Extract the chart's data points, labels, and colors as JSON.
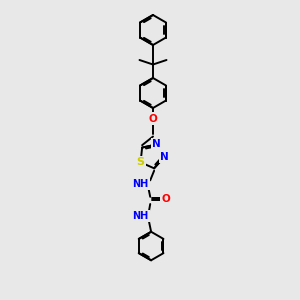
{
  "bg_color": "#e8e8e8",
  "bond_color": "#000000",
  "atom_colors": {
    "N": "#0000ff",
    "O": "#ff0000",
    "S": "#cccc00",
    "C": "#000000"
  },
  "figsize": [
    3.0,
    3.0
  ],
  "dpi": 100,
  "lw": 1.4,
  "ring_r": 0.38,
  "xlim": [
    0,
    6
  ],
  "ylim": [
    0,
    10
  ]
}
